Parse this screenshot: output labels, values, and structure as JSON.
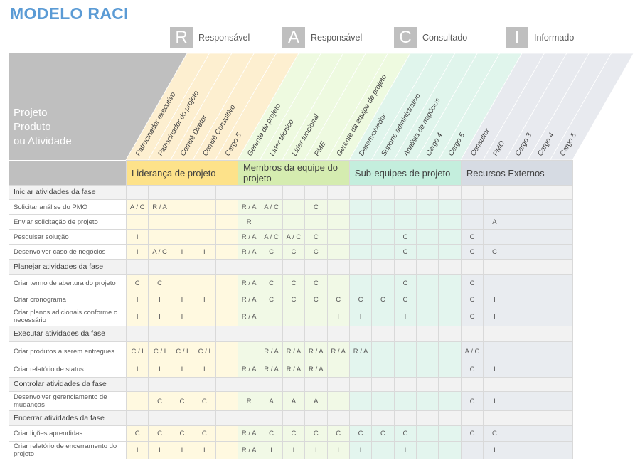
{
  "title": "MODELO RACI",
  "legend": [
    {
      "letter": "R",
      "label": "Responsável"
    },
    {
      "letter": "A",
      "label": "Responsável"
    },
    {
      "letter": "C",
      "label": "Consultado"
    },
    {
      "letter": "I",
      "label": "Informado"
    }
  ],
  "corner_label": [
    "Projeto",
    "Produto",
    "ou Atividade"
  ],
  "groups": [
    {
      "name": "Liderança de projeto",
      "color": "#fde28a",
      "light": "#fff9e0",
      "slant": "#fdefd0",
      "roles": [
        "Patrocinador executivo",
        "Patrocinador do projeto",
        "Comitê Diretor",
        "Comitê Consultivo",
        "Cargo 5"
      ]
    },
    {
      "name": "Membros da equipe do projeto",
      "color": "#d5ecb0",
      "light": "#f1f9e6",
      "slant": "#eefae0",
      "roles": [
        "Gerente de projeto",
        "Líder técnico",
        "Líder funcional",
        "PME",
        "Gerente da equipe de projeto"
      ]
    },
    {
      "name": "Sub-equipes de projeto",
      "color": "#c4eedd",
      "light": "#e3f5ee",
      "slant": "#e0f5ec",
      "roles": [
        "Desenvolvedor",
        "Suporte administrativo",
        "Analista de negócios",
        "Cargo 4",
        "Cargo 5"
      ]
    },
    {
      "name": "Recursos Externos",
      "color": "#d6dbe3",
      "light": "#e9ecf0",
      "slant": "#e8eaef",
      "roles": [
        "Consultor",
        "PMO",
        "Cargo 3",
        "Cargo 4",
        "Cargo 5"
      ]
    }
  ],
  "rows": [
    {
      "section": "Iniciar atividades da fase"
    },
    {
      "activity": "Solicitar análise do PMO",
      "cells": [
        "A / C",
        "R / A",
        "",
        "",
        "",
        "R / A",
        "A / C",
        "",
        "C",
        "",
        "",
        "",
        "",
        "",
        "",
        "",
        "",
        "",
        "",
        ""
      ]
    },
    {
      "activity": "Enviar solicitação de projeto",
      "cells": [
        "",
        "",
        "",
        "",
        "",
        "R",
        "",
        "",
        "",
        "",
        "",
        "",
        "",
        "",
        "",
        "",
        "A",
        "",
        "",
        ""
      ]
    },
    {
      "activity": "Pesquisar solução",
      "cells": [
        "I",
        "",
        "",
        "",
        "",
        "R / A",
        "A / C",
        "A / C",
        "C",
        "",
        "",
        "",
        "C",
        "",
        "",
        "C",
        "",
        "",
        "",
        ""
      ]
    },
    {
      "activity": "Desenvolver caso de negócios",
      "cells": [
        "I",
        "A / C",
        "I",
        "I",
        "",
        "R / A",
        "C",
        "C",
        "C",
        "",
        "",
        "",
        "C",
        "",
        "",
        "C",
        "C",
        "",
        "",
        ""
      ]
    },
    {
      "section": "Planejar atividades da fase"
    },
    {
      "activity": "Criar termo de abertura do projeto",
      "cells": [
        "C",
        "C",
        "",
        "",
        "",
        "R / A",
        "C",
        "C",
        "C",
        "",
        "",
        "",
        "C",
        "",
        "",
        "C",
        "",
        "",
        "",
        ""
      ]
    },
    {
      "activity": "Criar cronograma",
      "cells": [
        "I",
        "I",
        "I",
        "I",
        "",
        "R / A",
        "C",
        "C",
        "C",
        "C",
        "C",
        "C",
        "C",
        "",
        "",
        "C",
        "I",
        "",
        "",
        ""
      ]
    },
    {
      "activity": "Criar planos adicionais conforme o necessário",
      "cells": [
        "I",
        "I",
        "I",
        "",
        "",
        "R / A",
        "",
        "",
        "",
        "I",
        "I",
        "I",
        "I",
        "",
        "",
        "C",
        "I",
        "",
        "",
        ""
      ]
    },
    {
      "section": "Executar atividades da fase"
    },
    {
      "activity": "Criar produtos a serem entregues",
      "cells": [
        "C / I",
        "C / I",
        "C / I",
        "C / I",
        "",
        "",
        "R / A",
        "R / A",
        "R / A",
        "R / A",
        "R / A",
        "",
        "",
        "",
        "",
        "A / C",
        "",
        "",
        "",
        ""
      ]
    },
    {
      "activity": "Criar relatório de status",
      "cells": [
        "I",
        "I",
        "I",
        "I",
        "",
        "R / A",
        "R / A",
        "R / A",
        "R / A",
        "",
        "",
        "",
        "",
        "",
        "",
        "C",
        "I",
        "",
        "",
        ""
      ]
    },
    {
      "section": "Controlar atividades da fase"
    },
    {
      "activity": "Desenvolver gerenciamento de mudanças",
      "cells": [
        "",
        "C",
        "C",
        "C",
        "",
        "R",
        "A",
        "A",
        "A",
        "",
        "",
        "",
        "",
        "",
        "",
        "C",
        "I",
        "",
        "",
        ""
      ]
    },
    {
      "section": "Encerrar atividades da fase"
    },
    {
      "activity": "Criar lições aprendidas",
      "cells": [
        "C",
        "C",
        "C",
        "C",
        "",
        "R / A",
        "C",
        "C",
        "C",
        "C",
        "C",
        "C",
        "C",
        "",
        "",
        "C",
        "C",
        "",
        "",
        ""
      ]
    },
    {
      "activity": "Criar relatório de encerramento do projeto",
      "cells": [
        "I",
        "I",
        "I",
        "I",
        "",
        "R / A",
        "I",
        "I",
        "I",
        "I",
        "I",
        "I",
        "I",
        "",
        "",
        "",
        "I",
        "",
        "",
        ""
      ]
    }
  ]
}
